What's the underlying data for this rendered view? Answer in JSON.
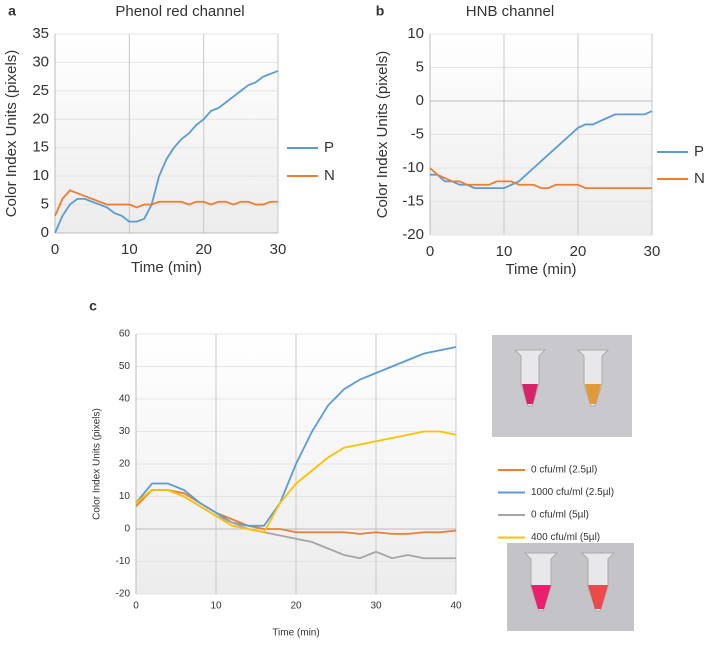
{
  "chart_data": [
    {
      "type": "line",
      "panel_label": "a",
      "title": "Phenol red channel",
      "xlabel": "Time (min)",
      "ylabel": "Color Index Units (pixels)",
      "x": [
        0,
        1,
        2,
        3,
        4,
        5,
        6,
        7,
        8,
        9,
        10,
        11,
        12,
        13,
        14,
        15,
        16,
        17,
        18,
        19,
        20,
        21,
        22,
        23,
        24,
        25,
        26,
        27,
        28,
        29,
        30
      ],
      "series": [
        {
          "name": "P",
          "color": "#5b9bd5",
          "values": [
            0,
            3,
            5,
            6,
            6,
            5.5,
            5,
            4.5,
            3.5,
            3,
            2,
            2,
            2.5,
            5,
            10,
            13,
            15,
            16.5,
            17.5,
            19,
            20,
            21.5,
            22,
            23,
            24,
            25,
            26,
            26.5,
            27.5,
            28,
            28.5
          ]
        },
        {
          "name": "N",
          "color": "#ed7d31",
          "values": [
            3,
            6,
            7.5,
            7,
            6.5,
            6,
            5.5,
            5,
            5,
            5,
            5,
            4.5,
            5,
            5,
            5.5,
            5.5,
            5.5,
            5.5,
            5,
            5.5,
            5.5,
            5,
            5.5,
            5.5,
            5,
            5.5,
            5.5,
            5,
            5,
            5.5,
            5.5
          ]
        }
      ],
      "xlim": [
        0,
        30
      ],
      "xticks": [
        0,
        10,
        20,
        30
      ],
      "ylim": [
        0,
        35
      ],
      "yticks": [
        0,
        5,
        10,
        15,
        20,
        25,
        30,
        35
      ],
      "grid": true,
      "legend": "right"
    },
    {
      "type": "line",
      "panel_label": "b",
      "title": "HNB channel",
      "xlabel": "Time (min)",
      "ylabel": "Color Index Units (pixels)",
      "x": [
        0,
        1,
        2,
        3,
        4,
        5,
        6,
        7,
        8,
        9,
        10,
        11,
        12,
        13,
        14,
        15,
        16,
        17,
        18,
        19,
        20,
        21,
        22,
        23,
        24,
        25,
        26,
        27,
        28,
        29,
        30
      ],
      "series": [
        {
          "name": "P",
          "color": "#5b9bd5",
          "values": [
            -11,
            -11,
            -12,
            -12,
            -12.5,
            -12.5,
            -13,
            -13,
            -13,
            -13,
            -13,
            -12.5,
            -12,
            -11,
            -10,
            -9,
            -8,
            -7,
            -6,
            -5,
            -4,
            -3.5,
            -3.5,
            -3,
            -2.5,
            -2,
            -2,
            -2,
            -2,
            -2,
            -1.5
          ]
        },
        {
          "name": "N",
          "color": "#ed7d31",
          "values": [
            -10,
            -11,
            -11.5,
            -12,
            -12,
            -12.5,
            -12.5,
            -12.5,
            -12.5,
            -12,
            -12,
            -12,
            -12.5,
            -12.5,
            -12.5,
            -13,
            -13,
            -12.5,
            -12.5,
            -12.5,
            -12.5,
            -13,
            -13,
            -13,
            -13,
            -13,
            -13,
            -13,
            -13,
            -13,
            -13
          ]
        }
      ],
      "xlim": [
        0,
        30
      ],
      "xticks": [
        0,
        10,
        20,
        30
      ],
      "ylim": [
        -20,
        10
      ],
      "yticks": [
        -20,
        -15,
        -10,
        -5,
        0,
        5,
        10
      ],
      "grid": true,
      "legend": "right"
    },
    {
      "type": "line",
      "panel_label": "c",
      "xlabel": "Time (min)",
      "ylabel": "Color Index Units (pixels)",
      "x": [
        0,
        2,
        4,
        6,
        8,
        10,
        12,
        14,
        16,
        18,
        20,
        22,
        24,
        26,
        28,
        30,
        32,
        34,
        36,
        38,
        40
      ],
      "series": [
        {
          "name": "0 cfu/ml (2.5µl)",
          "color": "#ed7d31",
          "values": [
            7,
            12,
            12,
            11,
            8,
            5,
            3,
            1,
            0,
            0,
            -1,
            -1,
            -1,
            -1,
            -1.5,
            -1,
            -1.5,
            -1.5,
            -1,
            -1,
            -0.5
          ]
        },
        {
          "name": "1000 cfu/ml (2.5µl)",
          "color": "#5b9bd5",
          "values": [
            8,
            14,
            14,
            12,
            8,
            5,
            2,
            1,
            1,
            8,
            20,
            30,
            38,
            43,
            46,
            48,
            50,
            52,
            54,
            55,
            56
          ]
        },
        {
          "name": "0 cfu/ml (5µl)",
          "color": "#a5a5a5",
          "values": [
            8,
            12,
            12,
            10,
            7,
            4,
            2,
            0,
            -1,
            -2,
            -3,
            -4,
            -6,
            -8,
            -9,
            -7,
            -9,
            -8,
            -9,
            -9,
            -9
          ]
        },
        {
          "name": "400 cfu/ml (5µl)",
          "color": "#ffc000",
          "values": [
            8,
            12,
            12,
            10,
            7,
            4,
            1,
            0,
            -1,
            8,
            14,
            18,
            22,
            25,
            26,
            27,
            28,
            29,
            30,
            30,
            29
          ]
        }
      ],
      "xlim": [
        0,
        40
      ],
      "xticks": [
        0,
        10,
        20,
        30,
        40
      ],
      "ylim": [
        -20,
        60
      ],
      "yticks": [
        -20,
        -10,
        0,
        10,
        20,
        30,
        40,
        50,
        60
      ],
      "grid": true,
      "legend": "right"
    }
  ]
}
